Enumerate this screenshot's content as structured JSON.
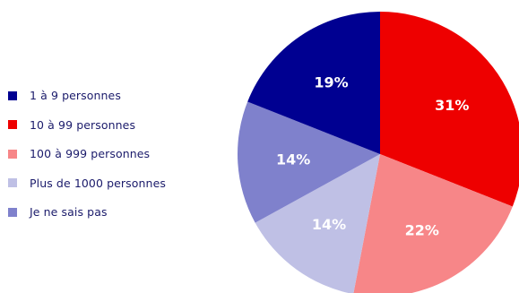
{
  "chart_data": {
    "type": "pie",
    "title": "",
    "start": "12 o'clock",
    "direction": "clockwise",
    "legend_position": "left",
    "categories": [
      "1 à 9 personnes",
      "10 à 99 personnes",
      "100 à 999 personnes",
      "Plus de 1000 personnes",
      "Je ne sais pas"
    ],
    "colors": [
      "#000091",
      "#ee0000",
      "#f78688",
      "#bfc0e5",
      "#7f81cc"
    ],
    "slices": [
      {
        "label": "10 à 99 personnes",
        "value": 31,
        "display": "31%",
        "color": "#ee0000"
      },
      {
        "label": "100 à 999 personnes",
        "value": 22,
        "display": "22%",
        "color": "#f78688"
      },
      {
        "label": "Plus de 1000 personnes",
        "value": 14,
        "display": "14%",
        "color": "#bfc0e5"
      },
      {
        "label": "Je ne sais pas",
        "value": 14,
        "display": "14%",
        "color": "#7f81cc"
      },
      {
        "label": "1 à 9 personnes",
        "value": 19,
        "display": "19%",
        "color": "#000091"
      }
    ]
  }
}
